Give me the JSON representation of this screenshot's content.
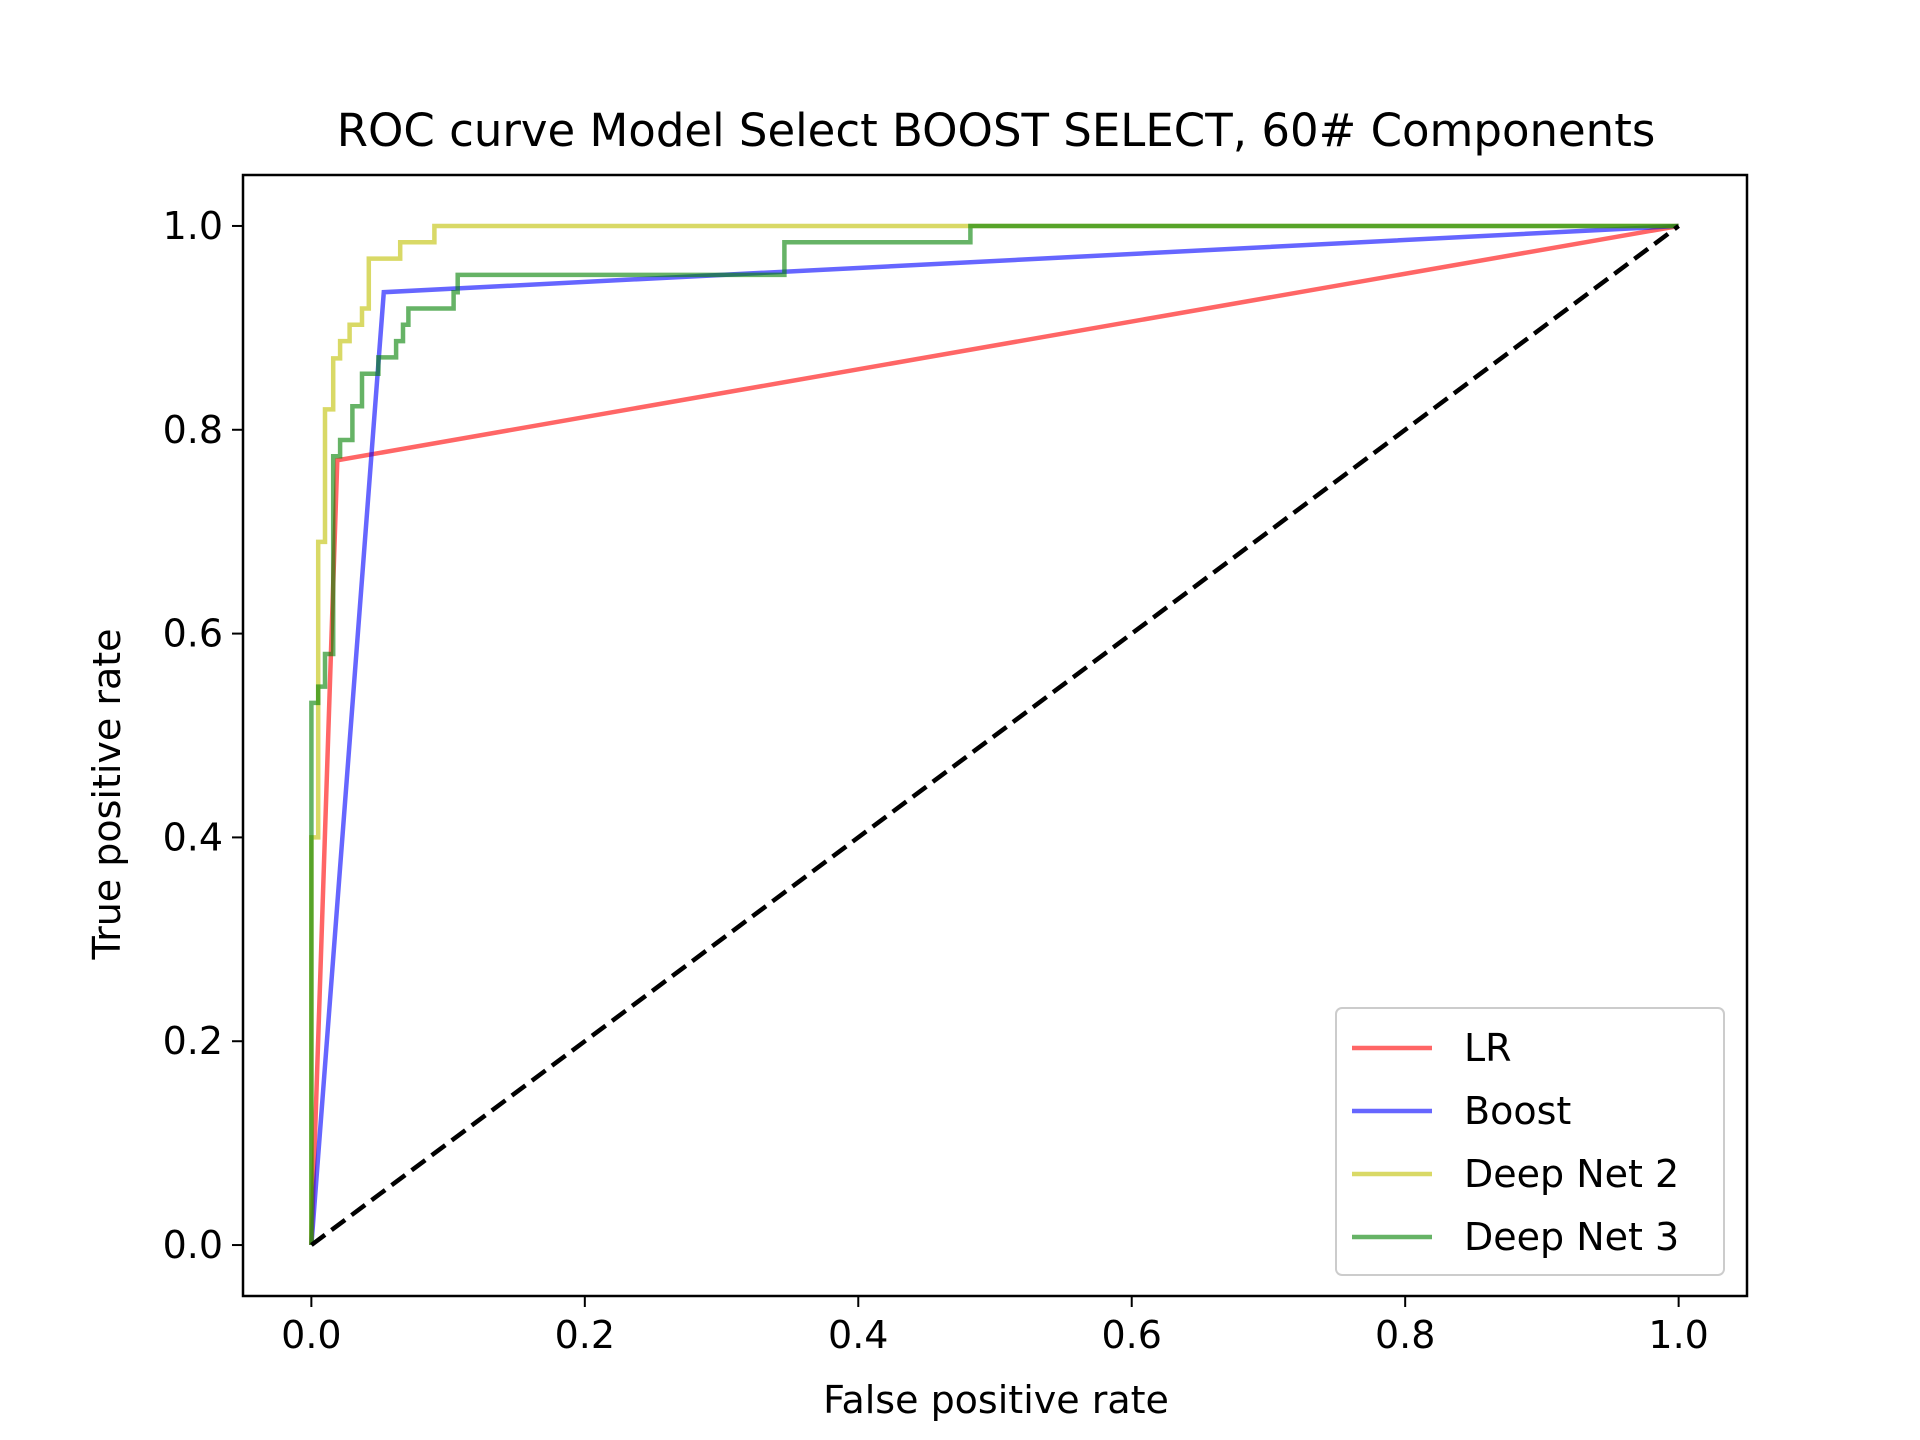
{
  "chart_data": {
    "type": "line",
    "title": "ROC curve Model Select BOOST SELECT, 60# Components",
    "xlabel": "False positive rate",
    "ylabel": "True positive rate",
    "xlim": [
      -0.05,
      1.05
    ],
    "ylim": [
      -0.05,
      1.05
    ],
    "xticks": [
      "0.0",
      "0.2",
      "0.4",
      "0.6",
      "0.8",
      "1.0"
    ],
    "yticks": [
      "0.0",
      "0.2",
      "0.4",
      "0.6",
      "0.8",
      "1.0"
    ],
    "grid": false,
    "legend_position": "lower right",
    "series": [
      {
        "name": "LR",
        "color": "#ff0000",
        "points": [
          [
            0.0,
            0.0
          ],
          [
            0.019,
            0.77
          ],
          [
            1.0,
            1.0
          ]
        ]
      },
      {
        "name": "Boost",
        "color": "#0000ff",
        "points": [
          [
            0.0,
            0.0
          ],
          [
            0.053,
            0.935
          ],
          [
            1.0,
            1.0
          ]
        ]
      },
      {
        "name": "Deep Net 2",
        "color": "#bfbf00",
        "points": [
          [
            0.0,
            0.0
          ],
          [
            0.0,
            0.4
          ],
          [
            0.005,
            0.4
          ],
          [
            0.005,
            0.55
          ],
          [
            0.005,
            0.69
          ],
          [
            0.01,
            0.69
          ],
          [
            0.01,
            0.82
          ],
          [
            0.016,
            0.82
          ],
          [
            0.016,
            0.87
          ],
          [
            0.021,
            0.87
          ],
          [
            0.021,
            0.887
          ],
          [
            0.028,
            0.887
          ],
          [
            0.028,
            0.903
          ],
          [
            0.037,
            0.903
          ],
          [
            0.037,
            0.919
          ],
          [
            0.042,
            0.919
          ],
          [
            0.042,
            0.968
          ],
          [
            0.065,
            0.968
          ],
          [
            0.065,
            0.984
          ],
          [
            0.09,
            0.984
          ],
          [
            0.09,
            1.0
          ],
          [
            1.0,
            1.0
          ]
        ]
      },
      {
        "name": "Deep Net 3",
        "color": "#008000",
        "points": [
          [
            0.0,
            0.0
          ],
          [
            0.0,
            0.532
          ],
          [
            0.005,
            0.532
          ],
          [
            0.005,
            0.548
          ],
          [
            0.01,
            0.548
          ],
          [
            0.01,
            0.58
          ],
          [
            0.016,
            0.58
          ],
          [
            0.016,
            0.774
          ],
          [
            0.021,
            0.774
          ],
          [
            0.021,
            0.79
          ],
          [
            0.03,
            0.79
          ],
          [
            0.03,
            0.823
          ],
          [
            0.037,
            0.823
          ],
          [
            0.037,
            0.855
          ],
          [
            0.049,
            0.855
          ],
          [
            0.049,
            0.871
          ],
          [
            0.062,
            0.871
          ],
          [
            0.062,
            0.887
          ],
          [
            0.067,
            0.887
          ],
          [
            0.067,
            0.903
          ],
          [
            0.071,
            0.903
          ],
          [
            0.071,
            0.919
          ],
          [
            0.104,
            0.919
          ],
          [
            0.104,
            0.935
          ],
          [
            0.107,
            0.935
          ],
          [
            0.107,
            0.952
          ],
          [
            0.346,
            0.952
          ],
          [
            0.346,
            0.984
          ],
          [
            0.482,
            0.984
          ],
          [
            0.482,
            1.0
          ],
          [
            1.0,
            1.0
          ]
        ]
      },
      {
        "color": "#000000",
        "dashed": true,
        "points": [
          [
            0.0,
            0.0
          ],
          [
            1.0,
            1.0
          ]
        ]
      }
    ]
  }
}
